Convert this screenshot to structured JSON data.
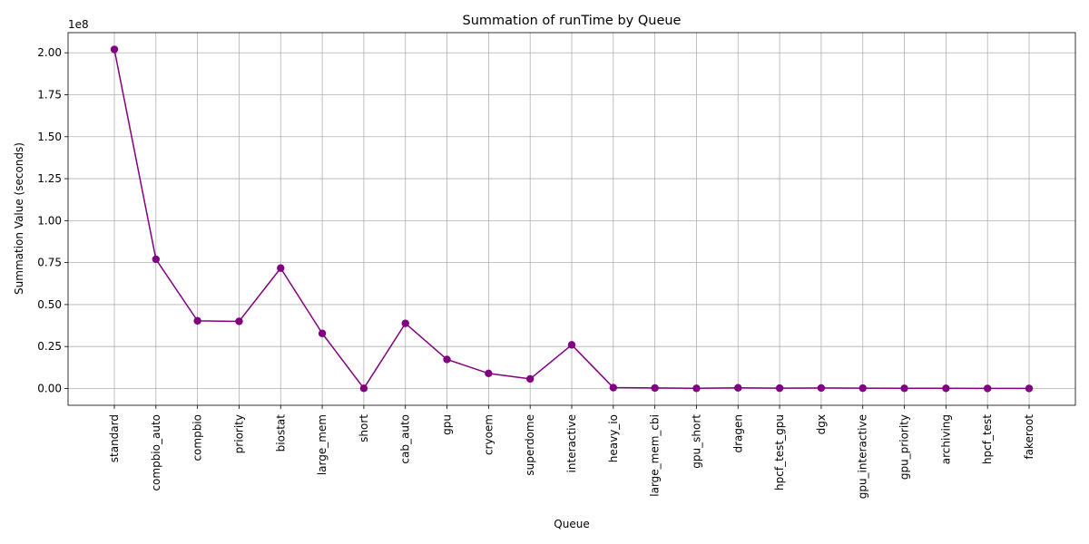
{
  "chart_data": {
    "type": "line",
    "title": "Summation of runTime by Queue",
    "xlabel": "Queue",
    "ylabel": "Summation Value (seconds)",
    "y_offset_text": "1e8",
    "y_scale": 100000000,
    "ylim": [
      -10000000,
      212000000
    ],
    "yticks": [
      0,
      25000000,
      50000000,
      75000000,
      100000000,
      125000000,
      150000000,
      175000000,
      200000000
    ],
    "ytick_labels": [
      "0.00",
      "0.25",
      "0.50",
      "0.75",
      "1.00",
      "1.25",
      "1.50",
      "1.75",
      "2.00"
    ],
    "grid": true,
    "legend": "none",
    "colors": {
      "line": "#800080",
      "marker": "#800080",
      "grid": "#b0b0b0"
    },
    "categories": [
      "standard",
      "compbio_auto",
      "compbio",
      "priority",
      "biostat",
      "large_mem",
      "short",
      "cab_auto",
      "gpu",
      "cryoem",
      "superdome",
      "interactive",
      "heavy_io",
      "large_mem_cbi",
      "gpu_short",
      "dragen",
      "hpcf_test_gpu",
      "dgx",
      "gpu_interactive",
      "gpu_priority",
      "archiving",
      "hpcf_test",
      "fakeroot"
    ],
    "series": [
      {
        "values": [
          202000000,
          77000000,
          40300000,
          40000000,
          71700000,
          32800000,
          100000,
          38800000,
          17300000,
          9000000,
          5700000,
          26000000,
          500000,
          300000,
          100000,
          400000,
          200000,
          300000,
          200000,
          100000,
          100000,
          50000,
          50000
        ]
      }
    ]
  }
}
